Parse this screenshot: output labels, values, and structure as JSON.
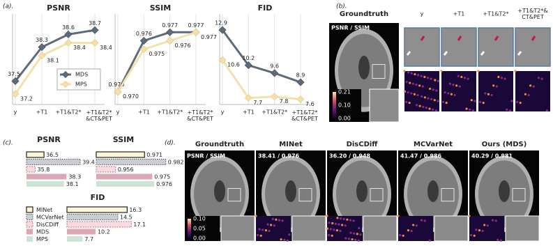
{
  "figure_labels": {
    "a": "(a).",
    "b": "(b).",
    "c": "(c).",
    "d": "(d)."
  },
  "chart_data": [
    {
      "type": "line",
      "title": "PSNR",
      "categories": [
        "y",
        "+T1",
        "+T1&T2*",
        "+T1&T2*\n&CT&PET"
      ],
      "series": [
        {
          "name": "MDS",
          "color": "#5e6b79",
          "values": [
            37.5,
            38.3,
            38.6,
            38.7
          ]
        },
        {
          "name": "MPS",
          "color": "#f3e1ad",
          "values": [
            37.2,
            38.1,
            38.4,
            38.4
          ]
        }
      ],
      "ylim": [
        36.95,
        38.95
      ],
      "grid": true,
      "legend": "center right"
    },
    {
      "type": "line",
      "title": "SSIM",
      "categories": [
        "y",
        "+T1",
        "+T1&T2*",
        "+T1&T2*\n&CT&PET"
      ],
      "series": [
        {
          "name": "MDS",
          "color": "#5e6b79",
          "values": [
            0.97,
            0.976,
            0.977,
            0.977
          ],
          "value_labels": [
            "0.970",
            "0.976",
            "0.977",
            "0.977"
          ]
        },
        {
          "name": "MPS",
          "color": "#f3e1ad",
          "values": [
            0.97,
            0.975,
            0.976,
            0.977
          ],
          "value_labels": [
            "0.970",
            "0.975",
            "0.976",
            "0.977"
          ]
        }
      ],
      "ylim": [
        0.9685,
        0.9785
      ],
      "grid": true
    },
    {
      "type": "line",
      "title": "FID",
      "categories": [
        "y",
        "+T1",
        "+T1&T2*",
        "+T1&T2*\n&CT&PET"
      ],
      "series": [
        {
          "name": "MDS",
          "color": "#5e6b79",
          "values": [
            12.9,
            10.2,
            9.6,
            8.9
          ]
        },
        {
          "name": "MPS",
          "color": "#f3e1ad",
          "values": [
            10.6,
            7.7,
            7.8,
            7.6
          ]
        }
      ],
      "ylim": [
        7.2,
        13.7
      ],
      "grid": true
    },
    {
      "type": "bar",
      "orientation": "horizontal",
      "title": "PSNR",
      "values": [
        36.5,
        39.4,
        35.8,
        38.3,
        38.1
      ],
      "colors": [
        "#fdf5d8",
        "#c9ccd1",
        "#f7dbe1",
        "#dba6b5",
        "#cde3d6"
      ],
      "xlim": [
        35.1,
        40.4
      ]
    },
    {
      "type": "bar",
      "orientation": "horizontal",
      "title": "SSIM",
      "values": [
        0.971,
        0.982,
        0.956,
        0.975,
        0.976
      ],
      "colors": [
        "#fdf5d8",
        "#c9ccd1",
        "#f7dbe1",
        "#dba6b5",
        "#cde3d6"
      ],
      "xlim": [
        0.946,
        0.985
      ]
    },
    {
      "type": "bar",
      "orientation": "horizontal",
      "title": "FID",
      "categories": [
        "MINet",
        "MCVarNet",
        "DisCDiff",
        "MDS",
        "MPS"
      ],
      "values": [
        16.3,
        14.5,
        17.1,
        10.2,
        7.7
      ],
      "colors": [
        "#fdf5d8",
        "#c9ccd1",
        "#f7dbe1",
        "#dba6b5",
        "#cde3d6"
      ],
      "xlim": [
        4.7,
        18
      ],
      "legend": "left"
    }
  ],
  "panel_b": {
    "columns": [
      "Groundtruth",
      "y",
      "+T1",
      "+T1&T2*",
      "+T1&T2*&\nCT&PET"
    ],
    "metric_label": "PSNR / SSIM",
    "colorbar_ticks": [
      "0.21",
      "0.10",
      "0.00"
    ]
  },
  "panel_d": {
    "columns": [
      "Groundtruth",
      "MINet",
      "DisCDiff",
      "MCVarNet",
      "Ours (MDS)"
    ],
    "metrics": [
      "PSNR / SSIM",
      "38.41 / 0.976",
      "36.20 / 0.948",
      "41.47 / 0.986",
      "40.29 / 0.981"
    ],
    "colorbar_ticks": [
      "0.10",
      "0.05",
      "0.00"
    ]
  }
}
